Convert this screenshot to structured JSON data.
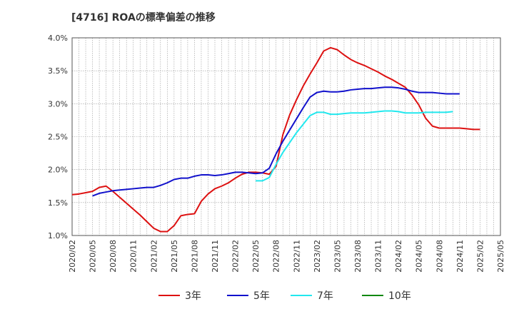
{
  "chart_data": {
    "type": "line",
    "title": "[4716]  ROAの標準偏差の推移",
    "y_ticks": [
      "1.0%",
      "1.5%",
      "2.0%",
      "2.5%",
      "3.0%",
      "3.5%",
      "4.0%"
    ],
    "ylim": [
      1.0,
      4.0
    ],
    "x_ticks": [
      "2020/02",
      "2020/05",
      "2020/08",
      "2020/11",
      "2021/02",
      "2021/05",
      "2021/08",
      "2021/11",
      "2022/02",
      "2022/05",
      "2022/08",
      "2022/11",
      "2023/02",
      "2023/05",
      "2023/08",
      "2023/11",
      "2024/02",
      "2024/05",
      "2024/08",
      "2024/11",
      "2025/02",
      "2025/05"
    ],
    "x_start": "2020/02",
    "x_end": "2025/05",
    "grid": true,
    "legend_position": "bottom",
    "series": [
      {
        "name": "3年",
        "color": "#dd1111",
        "start": "2020/02",
        "values": [
          1.62,
          1.63,
          1.65,
          1.67,
          1.73,
          1.75,
          1.67,
          1.58,
          1.49,
          1.4,
          1.31,
          1.21,
          1.11,
          1.06,
          1.06,
          1.15,
          1.3,
          1.32,
          1.33,
          1.52,
          1.63,
          1.71,
          1.75,
          1.8,
          1.87,
          1.93,
          1.96,
          1.96,
          1.95,
          1.93,
          2.05,
          2.53,
          2.83,
          3.06,
          3.27,
          3.45,
          3.62,
          3.8,
          3.85,
          3.82,
          3.74,
          3.67,
          3.62,
          3.58,
          3.53,
          3.48,
          3.42,
          3.37,
          3.31,
          3.25,
          3.13,
          2.98,
          2.78,
          2.66,
          2.63,
          2.63,
          2.63,
          2.63,
          2.62,
          2.61,
          2.61
        ]
      },
      {
        "name": "5年",
        "color": "#1111cc",
        "start": "2020/05",
        "values": [
          1.6,
          1.64,
          1.66,
          1.68,
          1.69,
          1.7,
          1.71,
          1.72,
          1.73,
          1.73,
          1.76,
          1.8,
          1.85,
          1.87,
          1.87,
          1.9,
          1.92,
          1.92,
          1.91,
          1.92,
          1.94,
          1.96,
          1.96,
          1.95,
          1.94,
          1.95,
          2.02,
          2.24,
          2.43,
          2.6,
          2.77,
          2.94,
          3.1,
          3.17,
          3.19,
          3.18,
          3.18,
          3.19,
          3.21,
          3.22,
          3.23,
          3.23,
          3.24,
          3.25,
          3.25,
          3.24,
          3.22,
          3.19,
          3.17,
          3.17,
          3.17,
          3.16,
          3.15,
          3.15,
          3.15
        ]
      },
      {
        "name": "7年",
        "color": "#22e8ee",
        "start": "2022/05",
        "values": [
          1.83,
          1.83,
          1.88,
          2.08,
          2.26,
          2.41,
          2.56,
          2.69,
          2.82,
          2.87,
          2.87,
          2.84,
          2.84,
          2.85,
          2.86,
          2.86,
          2.86,
          2.87,
          2.88,
          2.89,
          2.89,
          2.88,
          2.86,
          2.86,
          2.86,
          2.87,
          2.87,
          2.87,
          2.87,
          2.88
        ]
      },
      {
        "name": "10年",
        "color": "#118811",
        "start": "2025/02",
        "values": []
      }
    ]
  }
}
